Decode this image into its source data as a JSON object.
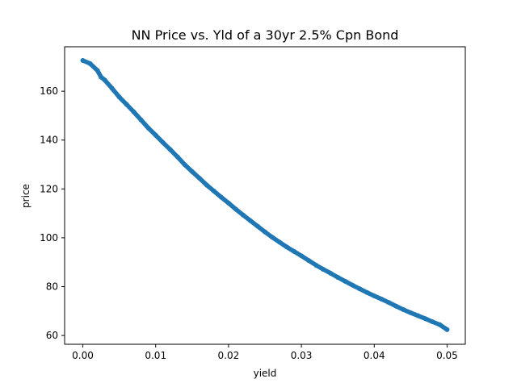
{
  "chart_data": {
    "type": "scatter",
    "title": "NN Price vs. Yld of a 30yr 2.5% Cpn Bond",
    "xlabel": "yield",
    "ylabel": "price",
    "xlim": [
      -0.0025,
      0.0525
    ],
    "ylim": [
      56.4,
      178.2
    ],
    "x_ticks": [
      {
        "value": 0.0,
        "label": "0.00"
      },
      {
        "value": 0.01,
        "label": "0.01"
      },
      {
        "value": 0.02,
        "label": "0.02"
      },
      {
        "value": 0.03,
        "label": "0.03"
      },
      {
        "value": 0.04,
        "label": "0.04"
      },
      {
        "value": 0.05,
        "label": "0.05"
      }
    ],
    "y_ticks": [
      {
        "value": 60,
        "label": "60"
      },
      {
        "value": 80,
        "label": "80"
      },
      {
        "value": 100,
        "label": "100"
      },
      {
        "value": 120,
        "label": "120"
      },
      {
        "value": 140,
        "label": "140"
      },
      {
        "value": 160,
        "label": "160"
      }
    ],
    "grid": false,
    "series": [
      {
        "color": "#1f77b4",
        "points": [
          [
            0.0,
            172.6
          ],
          [
            0.001,
            171.3
          ],
          [
            0.002,
            168.5
          ],
          [
            0.0025,
            165.8
          ],
          [
            0.003,
            164.6
          ],
          [
            0.004,
            161.2
          ],
          [
            0.005,
            157.6
          ],
          [
            0.006,
            154.6
          ],
          [
            0.007,
            151.5
          ],
          [
            0.008,
            148.2
          ],
          [
            0.009,
            144.9
          ],
          [
            0.01,
            142.0
          ],
          [
            0.011,
            139.0
          ],
          [
            0.012,
            136.1
          ],
          [
            0.013,
            133.1
          ],
          [
            0.014,
            129.9
          ],
          [
            0.015,
            127.1
          ],
          [
            0.016,
            124.4
          ],
          [
            0.017,
            121.6
          ],
          [
            0.018,
            119.1
          ],
          [
            0.019,
            116.6
          ],
          [
            0.02,
            114.2
          ],
          [
            0.021,
            111.7
          ],
          [
            0.022,
            109.3
          ],
          [
            0.023,
            107.0
          ],
          [
            0.024,
            104.7
          ],
          [
            0.025,
            102.4
          ],
          [
            0.026,
            100.2
          ],
          [
            0.027,
            98.2
          ],
          [
            0.028,
            96.2
          ],
          [
            0.029,
            94.4
          ],
          [
            0.03,
            92.6
          ],
          [
            0.031,
            90.7
          ],
          [
            0.032,
            88.8
          ],
          [
            0.033,
            87.1
          ],
          [
            0.034,
            85.5
          ],
          [
            0.035,
            83.8
          ],
          [
            0.036,
            82.2
          ],
          [
            0.037,
            80.6
          ],
          [
            0.038,
            79.1
          ],
          [
            0.039,
            77.6
          ],
          [
            0.04,
            76.2
          ],
          [
            0.041,
            74.9
          ],
          [
            0.042,
            73.5
          ],
          [
            0.043,
            72.0
          ],
          [
            0.044,
            70.6
          ],
          [
            0.045,
            69.3
          ],
          [
            0.046,
            68.1
          ],
          [
            0.047,
            66.9
          ],
          [
            0.048,
            65.6
          ],
          [
            0.049,
            64.4
          ],
          [
            0.05,
            62.4
          ]
        ]
      }
    ]
  }
}
